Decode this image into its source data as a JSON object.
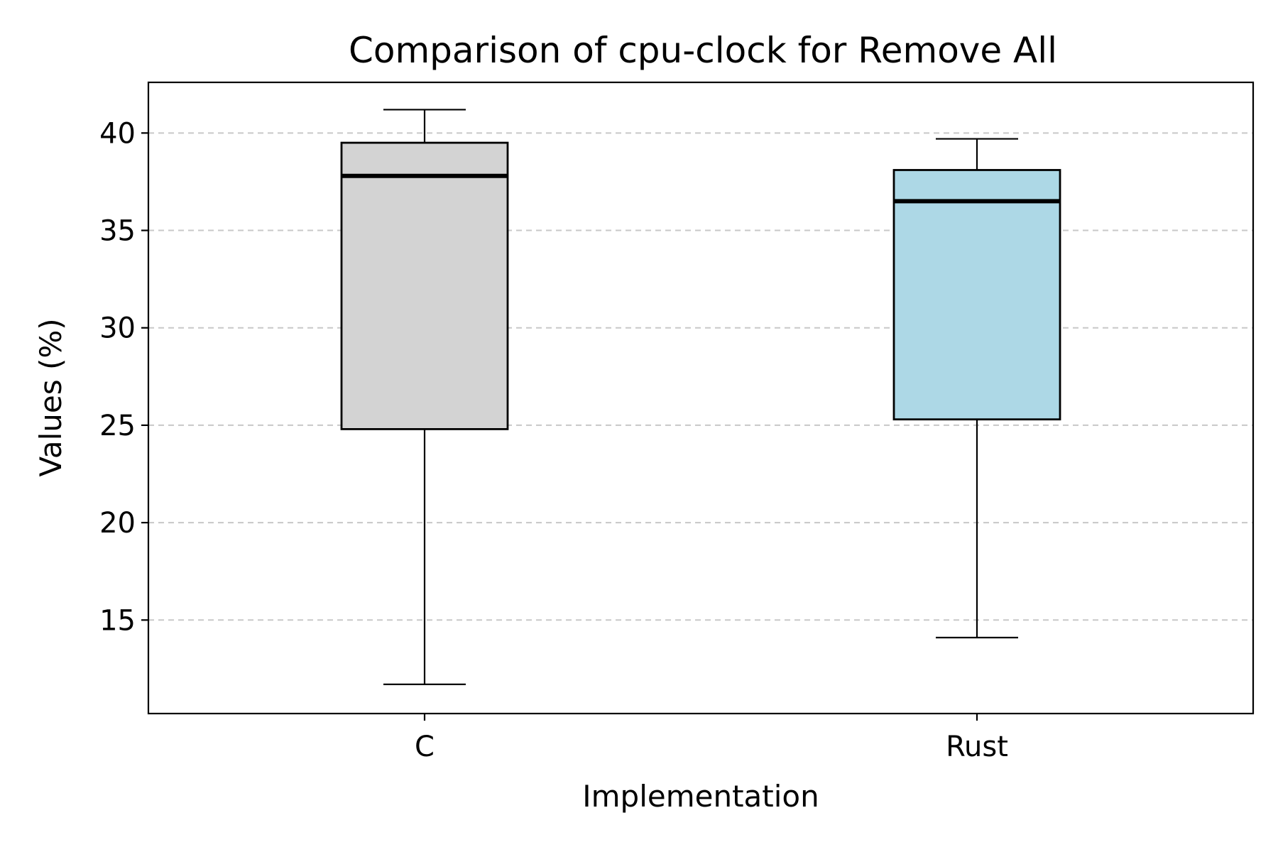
{
  "chart_data": {
    "type": "box",
    "title": "Comparison of cpu-clock for Remove All",
    "xlabel": "Implementation",
    "ylabel": "Values (%)",
    "ylim": [
      10.2,
      42.6
    ],
    "yticks": [
      15,
      20,
      25,
      30,
      35,
      40
    ],
    "grid": "y-dashed",
    "categories": [
      "C",
      "Rust"
    ],
    "boxes": [
      {
        "category": "C",
        "whisker_low": 11.7,
        "q1": 24.8,
        "median": 37.8,
        "q3": 39.5,
        "whisker_high": 41.2,
        "color": "#d3d3d3"
      },
      {
        "category": "Rust",
        "whisker_low": 14.1,
        "q1": 25.3,
        "median": 36.5,
        "q3": 38.1,
        "whisker_high": 39.7,
        "color": "#add8e6"
      }
    ]
  }
}
